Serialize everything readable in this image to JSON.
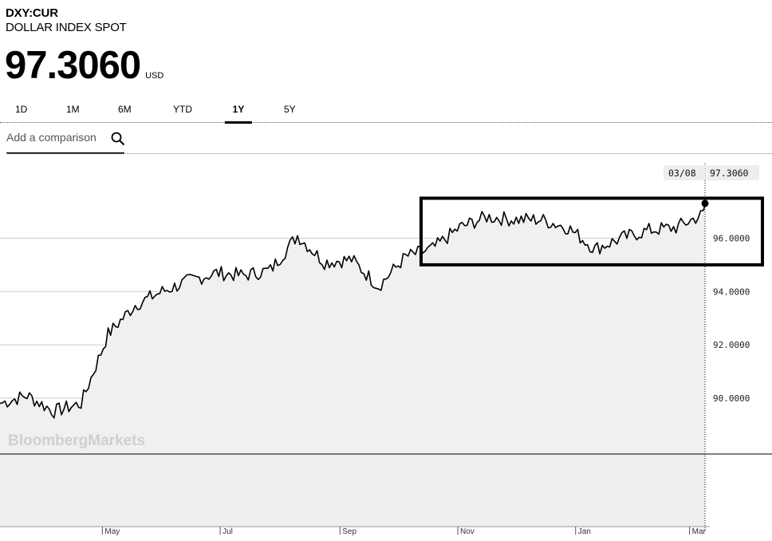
{
  "header": {
    "ticker": "DXY:CUR",
    "name": "DOLLAR INDEX SPOT",
    "price": "97.3060",
    "currency": "USD"
  },
  "tabs": [
    {
      "label": "1D",
      "active": false
    },
    {
      "label": "1M",
      "active": false
    },
    {
      "label": "6M",
      "active": false
    },
    {
      "label": "YTD",
      "active": false
    },
    {
      "label": "1Y",
      "active": true
    },
    {
      "label": "5Y",
      "active": false
    }
  ],
  "comparison": {
    "placeholder": "Add a comparison"
  },
  "watermark": "BloombergMarkets",
  "tooltip": {
    "date": "03/08",
    "value": "97.3060"
  },
  "colors": {
    "line": "#000000",
    "area": "#f0f0f0",
    "grid": "#cccccc",
    "highlight_box": "#000000"
  },
  "chart_data": {
    "type": "area",
    "y_ticks": [
      "90.0000",
      "92.0000",
      "94.0000",
      "96.0000"
    ],
    "y_tick_values": [
      90,
      92,
      94,
      96
    ],
    "x_ticks": [
      "May",
      "Jul",
      "Sep",
      "Nov",
      "Jan",
      "Mar"
    ],
    "ylim": [
      87.9,
      98.8
    ],
    "grid": true,
    "x": [
      "2018-03-08",
      "2018-03-22",
      "2018-04-05",
      "2018-04-19",
      "2018-05-03",
      "2018-05-17",
      "2018-05-31",
      "2018-06-14",
      "2018-06-28",
      "2018-07-12",
      "2018-07-26",
      "2018-08-09",
      "2018-08-23",
      "2018-09-06",
      "2018-09-20",
      "2018-10-04",
      "2018-10-18",
      "2018-11-01",
      "2018-11-15",
      "2018-11-29",
      "2018-12-13",
      "2018-12-27",
      "2019-01-10",
      "2019-01-24",
      "2019-02-07",
      "2019-02-21",
      "2019-03-07",
      "2019-03-08"
    ],
    "values": [
      89.8,
      90.1,
      89.5,
      89.8,
      92.4,
      93.5,
      94.0,
      94.4,
      94.7,
      94.6,
      94.8,
      96.1,
      95.1,
      95.2,
      94.2,
      95.3,
      95.6,
      96.4,
      96.8,
      96.7,
      96.7,
      96.4,
      95.6,
      96.0,
      96.3,
      96.4,
      96.9,
      97.306
    ],
    "last": {
      "date": "03/08",
      "value": 97.306
    },
    "highlight": {
      "x_start": "2018-10-12",
      "x_end": "2019-03-08",
      "y_range": [
        95.0,
        97.5
      ]
    }
  }
}
